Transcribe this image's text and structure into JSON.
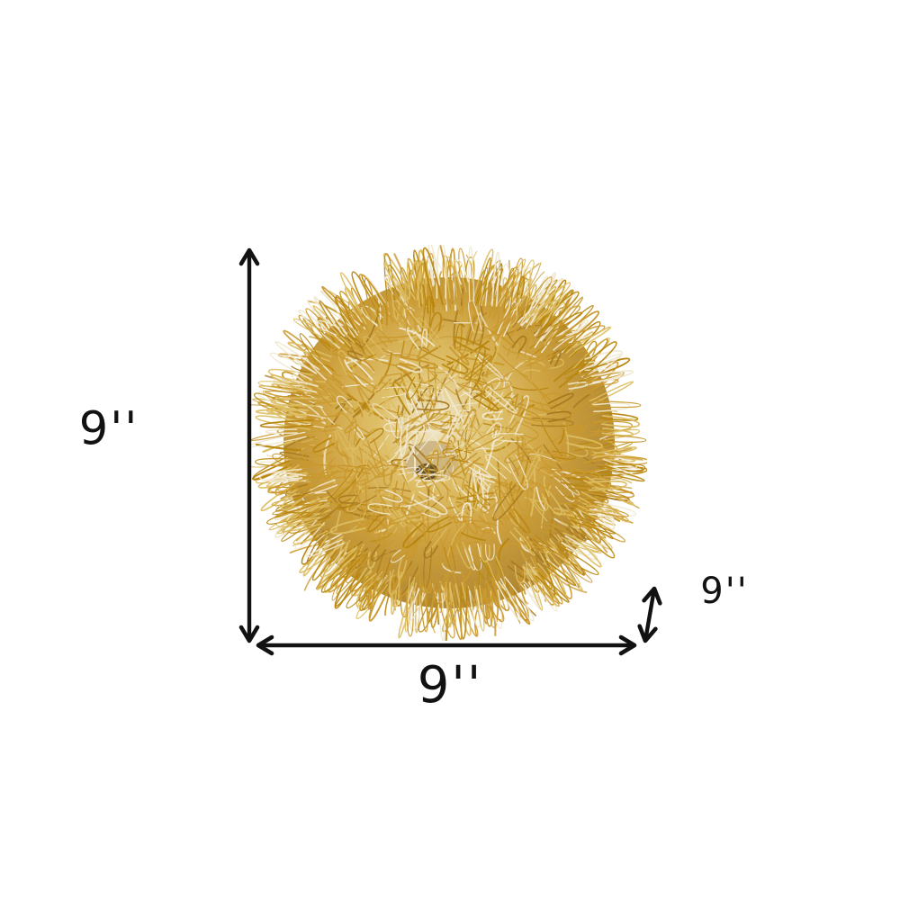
{
  "diagram": {
    "type": "product-dimensions",
    "product": "gold metal wire pom-pom sphere (top view)",
    "unit": "inches"
  },
  "labels": {
    "height": "9''",
    "width": "9''",
    "depth": "9''"
  },
  "colors": {
    "background": "#ffffff",
    "line": "#121212",
    "gold_mid": "#c9992e",
    "gold_deep": "#b8860e",
    "gold_light": "#ddbd62",
    "gold_dark": "#a6791f",
    "pale": "#f0e8d0",
    "beige": "#c9b183",
    "shadow": "#4f3e22"
  }
}
